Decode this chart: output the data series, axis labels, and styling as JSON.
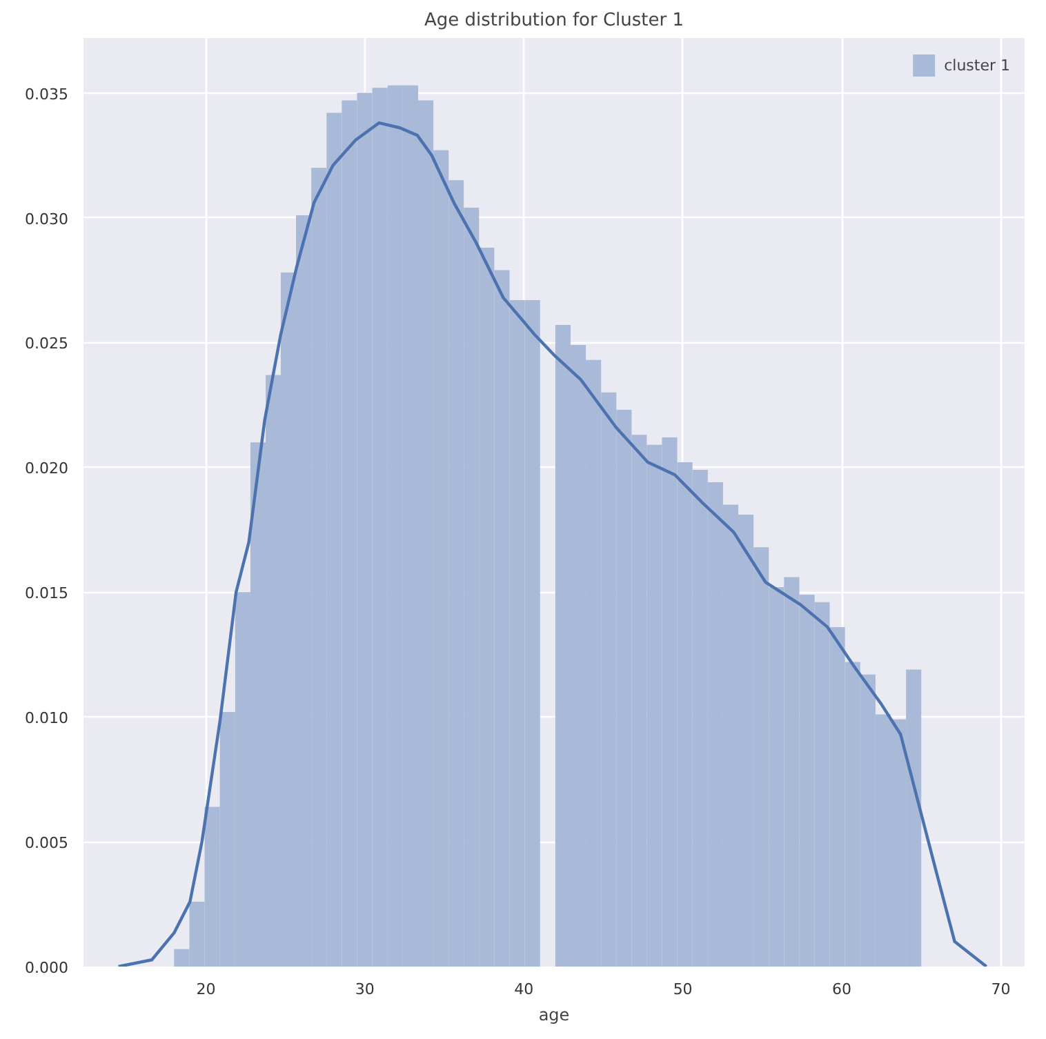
{
  "chart_data": {
    "type": "histogram",
    "title": "Age distribution for Cluster 1",
    "xlabel": "age",
    "xlim": [
      12.3,
      71.5
    ],
    "ylim": [
      0,
      0.0372
    ],
    "xticks": [
      20,
      30,
      40,
      50,
      60,
      70
    ],
    "yticks": [
      {
        "value": 0,
        "label": "0.000"
      },
      {
        "value": 0.005,
        "label": "0.005"
      },
      {
        "value": 0.01,
        "label": "0.010"
      },
      {
        "value": 0.015,
        "label": "0.015"
      },
      {
        "value": 0.02,
        "label": "0.020"
      },
      {
        "value": 0.025,
        "label": "0.025"
      },
      {
        "value": 0.03,
        "label": "0.030"
      },
      {
        "value": 0.035,
        "label": "0.035"
      }
    ],
    "grid": true,
    "legend": "top right",
    "series": [
      {
        "name": "cluster 1",
        "color": "#a9b9d8",
        "bins": [
          18.0,
          18.96,
          19.92,
          20.88,
          21.84,
          22.8,
          23.76,
          24.71,
          25.67,
          26.63,
          27.59,
          28.55,
          29.51,
          30.47,
          31.43,
          32.39,
          33.35,
          34.31,
          35.27,
          36.22,
          37.18,
          38.14,
          39.1,
          40.06,
          41.02,
          41.98,
          42.94,
          43.9,
          44.86,
          45.82,
          46.78,
          47.73,
          48.69,
          49.65,
          50.61,
          51.57,
          52.53,
          53.49,
          54.45,
          55.41,
          56.37,
          57.33,
          58.29,
          59.24,
          60.2,
          61.16,
          62.12,
          63.08,
          64.04,
          65.0
        ],
        "values": [
          0.0007,
          0.0026,
          0.0064,
          0.0102,
          0.015,
          0.021,
          0.0237,
          0.0278,
          0.0301,
          0.032,
          0.0342,
          0.0347,
          0.035,
          0.0352,
          0.0353,
          0.0353,
          0.0347,
          0.0327,
          0.0315,
          0.0304,
          0.0288,
          0.0279,
          0.0267,
          0.0267,
          0,
          0.0257,
          0.0249,
          0.0243,
          0.023,
          0.0223,
          0.0213,
          0.0209,
          0.0212,
          0.0202,
          0.0199,
          0.0194,
          0.0185,
          0.0181,
          0.0168,
          0.0152,
          0.0156,
          0.0149,
          0.0146,
          0.0136,
          0.0122,
          0.0117,
          0.0101,
          0.0099,
          0.0119
        ]
      },
      {
        "type": "line",
        "color": "#4c72b0",
        "x": [
          14.5,
          16.6,
          18.0,
          19.0,
          19.75,
          20.9,
          21.9,
          22.7,
          23.7,
          24.7,
          25.7,
          26.8,
          28.0,
          29.4,
          30.9,
          32.2,
          33.3,
          34.2,
          35.6,
          37.0,
          38.7,
          40.7,
          41.9,
          43.6,
          45.8,
          47.8,
          49.5,
          51.2,
          53.2,
          55.2,
          57.4,
          59.1,
          60.8,
          62.5,
          63.7,
          64.8,
          65.9,
          67.1,
          69.1
        ],
        "values": [
          0,
          0.00027,
          0.00135,
          0.0026,
          0.005,
          0.0099,
          0.015,
          0.017,
          0.0219,
          0.0253,
          0.028,
          0.0306,
          0.0321,
          0.0331,
          0.0338,
          0.0336,
          0.0333,
          0.0325,
          0.0306,
          0.029,
          0.0268,
          0.0253,
          0.0245,
          0.0235,
          0.0216,
          0.0202,
          0.0197,
          0.0186,
          0.0174,
          0.0154,
          0.0145,
          0.0136,
          0.012,
          0.0105,
          0.0093,
          0.0066,
          0.0039,
          0.001,
          0
        ]
      }
    ]
  }
}
